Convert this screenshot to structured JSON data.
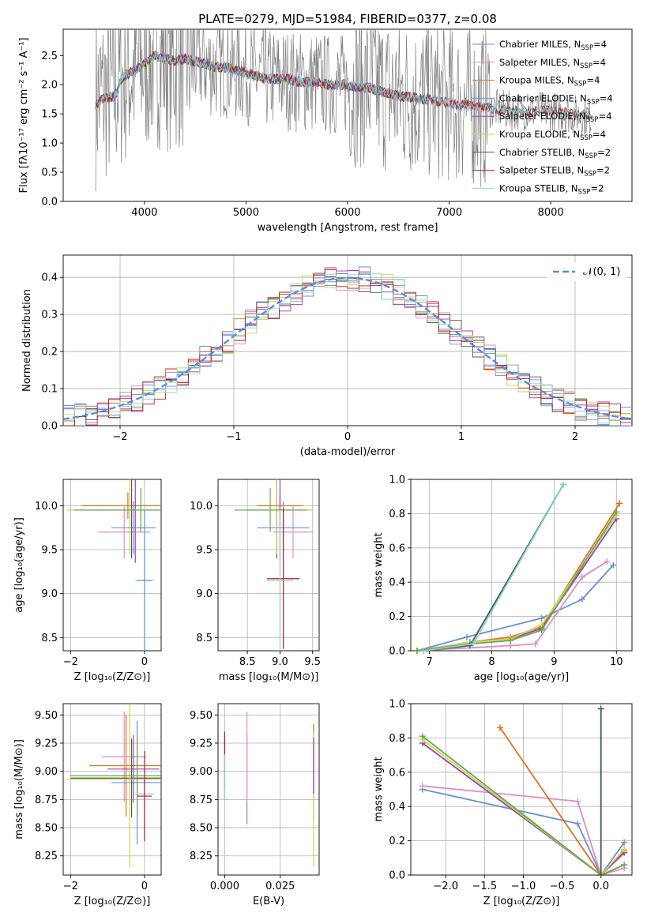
{
  "figure": {
    "title": "PLATE=0279, MJD=51984, FIBERID=0377, z=0.08",
    "colors": {
      "chabrier_miles": "#6a8fd4",
      "salpeter_miles": "#e38bc4",
      "kroupa_miles": "#e0701c",
      "chabrier_elodie": "#5a9bd5",
      "salpeter_elodie": "#9b3fb5",
      "kroupa_elodie": "#c8d84a",
      "chabrier_stelib": "#555555",
      "salpeter_stelib": "#c11a1a",
      "kroupa_stelib": "#7fd4d4",
      "data": "#808080"
    }
  },
  "chart_data": [
    {
      "id": "spectrum",
      "type": "line",
      "title": "PLATE=0279, MJD=51984, FIBERID=0377, z=0.08",
      "xlabel": "wavelength [Angstrom, rest frame]",
      "ylabel": "Flux [fλ10⁻¹⁷ erg cm⁻² s⁻¹ A⁻¹]",
      "xlim": [
        3200,
        8800
      ],
      "ylim": [
        0,
        2.95
      ],
      "xticks": [
        4000,
        5000,
        6000,
        7000,
        8000
      ],
      "yticks": [
        0.0,
        0.5,
        1.0,
        1.5,
        2.0,
        2.5
      ],
      "legend_position": "right",
      "legend": [
        "Chabrier MILES, N_SSP=4",
        "Salpeter MILES, N_SSP=4",
        "Kroupa MILES, N_SSP=4",
        "Chabrier ELODIE, N_SSP=4",
        "Salpeter ELODIE, N_SSP=4",
        "Kroupa ELODIE, N_SSP=4",
        "Chabrier STELIB, N_SSP=2",
        "Salpeter STELIB, N_SSP=2",
        "Kroupa STELIB, N_SSP=2"
      ],
      "model_continuum": {
        "x": [
          3500,
          3600,
          3700,
          3800,
          3900,
          4000,
          4100,
          4200,
          4300,
          4400,
          4500,
          4600,
          4700,
          4800,
          4900,
          5000,
          5100,
          5200,
          5300,
          5400,
          5500,
          5600,
          5700,
          5800,
          5900,
          6000,
          6100,
          6200,
          6300,
          6400,
          6500,
          6600,
          6700,
          6800,
          6900,
          7000,
          7100,
          7200,
          7300,
          7400,
          7600,
          7800,
          8000,
          8200,
          8400
        ],
        "y": [
          1.75,
          1.85,
          1.9,
          2.15,
          2.25,
          2.35,
          2.5,
          2.45,
          2.4,
          2.45,
          2.4,
          2.35,
          2.3,
          2.3,
          2.25,
          2.2,
          2.15,
          2.1,
          2.1,
          2.1,
          2.05,
          2.05,
          2.05,
          2.0,
          2.0,
          2.0,
          1.95,
          1.95,
          1.9,
          1.85,
          1.8,
          1.8,
          1.75,
          1.75,
          1.7,
          1.7,
          1.65,
          1.65,
          1.6,
          1.6,
          1.55,
          1.55,
          1.55,
          1.5,
          1.45
        ]
      }
    },
    {
      "id": "residuals",
      "type": "line",
      "xlabel": "(data-model)/error",
      "ylabel": "Normed distribution",
      "xlim": [
        -2.5,
        2.5
      ],
      "ylim": [
        0,
        0.46
      ],
      "xticks": [
        -2,
        -1,
        0,
        1,
        2
      ],
      "yticks": [
        0.0,
        0.1,
        0.2,
        0.3,
        0.4
      ],
      "legend": [
        "𝒩(0, 1)"
      ],
      "legend_position": "top-right"
    },
    {
      "id": "age_vs_Z",
      "type": "scatter",
      "xlabel": "Z [log₁₀(Z/Z⊙)]",
      "ylabel": "age  [log₁₀(age/yr)]",
      "xlim": [
        -2.2,
        0.45
      ],
      "ylim": [
        8.35,
        10.3
      ],
      "xticks": [
        -2,
        0
      ],
      "yticks": [
        8.5,
        9.0,
        9.5,
        10.0
      ],
      "points": [
        {
          "x": -0.45,
          "y": 10.0,
          "xerr": 1.25,
          "yerr": 0.15,
          "color": "#e0701c"
        },
        {
          "x": -0.55,
          "y": 9.7,
          "xerr": 0.7,
          "yerr": 0.3,
          "color": "#e38bc4"
        },
        {
          "x": -0.3,
          "y": 9.75,
          "xerr": 0.6,
          "yerr": 0.3,
          "color": "#6a8fd4"
        },
        {
          "x": -0.35,
          "y": 9.95,
          "xerr": 1.6,
          "yerr": 0.55,
          "color": "#555555"
        },
        {
          "x": -0.25,
          "y": 9.95,
          "xerr": 1.5,
          "yerr": 0.6,
          "color": "#9b3fb5"
        },
        {
          "x": -0.4,
          "y": 9.95,
          "xerr": 1.7,
          "yerr": 0.5,
          "color": "#c8d84a"
        },
        {
          "x": -0.1,
          "y": 9.95,
          "xerr": 1.8,
          "yerr": 0.25,
          "color": "#5fa84f"
        },
        {
          "x": 0.0,
          "y": 9.15,
          "xerr": 0.25,
          "yerr": 0.8,
          "color": "#7fd4d4"
        },
        {
          "x": 0.0,
          "y": 9.15,
          "xerr": 0.2,
          "yerr": 0.8,
          "color": "#5a9bd5"
        }
      ]
    },
    {
      "id": "age_vs_mass",
      "type": "scatter",
      "xlabel": "mass [log₁₀(M/M⊙)]",
      "xlim": [
        8.05,
        9.6
      ],
      "ylim": [
        8.35,
        10.3
      ],
      "xticks": [
        8.5,
        9.0,
        9.5
      ],
      "yticks": [
        8.5,
        9.0,
        9.5,
        10.0
      ],
      "points": [
        {
          "x": 9.0,
          "y": 10.0,
          "xerr": 0.35,
          "yerr": 0.15,
          "color": "#e0701c"
        },
        {
          "x": 9.2,
          "y": 9.7,
          "xerr": 0.3,
          "yerr": 0.3,
          "color": "#e38bc4"
        },
        {
          "x": 9.05,
          "y": 9.75,
          "xerr": 0.4,
          "yerr": 0.3,
          "color": "#6a8fd4"
        },
        {
          "x": 8.95,
          "y": 9.95,
          "xerr": 0.5,
          "yerr": 0.55,
          "color": "#555555"
        },
        {
          "x": 9.0,
          "y": 9.95,
          "xerr": 0.5,
          "yerr": 0.6,
          "color": "#9b3fb5"
        },
        {
          "x": 8.95,
          "y": 9.95,
          "xerr": 0.55,
          "yerr": 0.5,
          "color": "#c8d84a"
        },
        {
          "x": 8.85,
          "y": 9.95,
          "xerr": 0.55,
          "yerr": 0.25,
          "color": "#5fa84f"
        },
        {
          "x": 9.05,
          "y": 9.17,
          "xerr": 0.25,
          "yerr": 0.8,
          "color": "#c11a1a"
        },
        {
          "x": 9.0,
          "y": 9.15,
          "xerr": 0.2,
          "yerr": 0.8,
          "color": "#7fd4d4"
        }
      ]
    },
    {
      "id": "mass_weight_vs_age",
      "type": "line",
      "xlabel": "age  [log₁₀(age/yr)]",
      "ylabel": "mass weight",
      "xlim": [
        6.7,
        10.25
      ],
      "ylim": [
        0,
        1.0
      ],
      "xticks": [
        7,
        8,
        9,
        10
      ],
      "yticks": [
        0.0,
        0.2,
        0.4,
        0.6,
        0.8,
        1.0
      ],
      "series": [
        {
          "color": "#6a8fd4",
          "x": [
            6.8,
            7.6,
            8.8,
            9.45,
            9.95
          ],
          "y": [
            0.0,
            0.08,
            0.19,
            0.3,
            0.5
          ]
        },
        {
          "color": "#e38bc4",
          "x": [
            6.8,
            8.3,
            8.7,
            9.45,
            9.85
          ],
          "y": [
            0.0,
            0.03,
            0.04,
            0.43,
            0.52
          ]
        },
        {
          "color": "#e0701c",
          "x": [
            6.8,
            7.65,
            8.3,
            8.8,
            10.05
          ],
          "y": [
            0.0,
            0.05,
            0.08,
            0.14,
            0.86
          ]
        },
        {
          "color": "#9b3fb5",
          "x": [
            6.8,
            7.65,
            8.3,
            8.8,
            10.0
          ],
          "y": [
            0.0,
            0.05,
            0.07,
            0.13,
            0.77
          ]
        },
        {
          "color": "#c8d84a",
          "x": [
            6.8,
            7.65,
            8.3,
            8.8,
            10.0
          ],
          "y": [
            0.0,
            0.05,
            0.07,
            0.15,
            0.79
          ]
        },
        {
          "color": "#5fa84f",
          "x": [
            6.8,
            7.65,
            8.3,
            8.8,
            10.0
          ],
          "y": [
            0.0,
            0.04,
            0.06,
            0.12,
            0.81
          ]
        },
        {
          "color": "#555555",
          "x": [
            6.9,
            7.65,
            9.15
          ],
          "y": [
            0.0,
            0.03,
            0.97
          ]
        },
        {
          "color": "#7fd4d4",
          "x": [
            6.9,
            7.7,
            9.15
          ],
          "y": [
            0.0,
            0.04,
            0.97
          ]
        }
      ]
    },
    {
      "id": "mass_vs_Z",
      "type": "scatter",
      "xlabel": "Z [log₁₀(Z/Z⊙)]",
      "ylabel": "mass [log₁₀(M/M⊙)]",
      "xlim": [
        -2.2,
        0.45
      ],
      "ylim": [
        8.08,
        9.6
      ],
      "xticks": [
        -2,
        0
      ],
      "yticks": [
        8.25,
        8.5,
        8.75,
        9.0,
        9.25,
        9.5
      ],
      "points": [
        {
          "x": -0.5,
          "y": 9.05,
          "xerr": 1.0,
          "yerr": 0.45,
          "color": "#e0701c"
        },
        {
          "x": -0.55,
          "y": 9.13,
          "xerr": 0.6,
          "yerr": 0.4,
          "color": "#e38bc4"
        },
        {
          "x": -0.2,
          "y": 8.9,
          "xerr": 0.7,
          "yerr": 0.55,
          "color": "#6a8fd4"
        },
        {
          "x": -0.35,
          "y": 8.94,
          "xerr": 1.65,
          "yerr": 0.35,
          "color": "#555555"
        },
        {
          "x": -0.3,
          "y": 9.02,
          "xerr": 0.7,
          "yerr": 0.3,
          "color": "#9b3fb5"
        },
        {
          "x": -0.4,
          "y": 8.93,
          "xerr": 1.7,
          "yerr": 0.78,
          "color": "#c8d84a"
        },
        {
          "x": -0.2,
          "y": 8.96,
          "xerr": 1.8,
          "yerr": 0.35,
          "color": "#5fa84f"
        },
        {
          "x": 0.0,
          "y": 8.8,
          "xerr": 0.25,
          "yerr": 0.4,
          "color": "#7fd4d4"
        },
        {
          "x": 0.0,
          "y": 8.78,
          "xerr": 0.2,
          "yerr": 0.4,
          "color": "#c11a1a"
        }
      ]
    },
    {
      "id": "mass_vs_ebv",
      "type": "scatter",
      "xlabel": "E(B-V)",
      "xlim": [
        -0.003,
        0.0425
      ],
      "ylim": [
        8.08,
        9.6
      ],
      "xticks": [
        0.0,
        0.025
      ],
      "yticks": [
        8.25,
        8.5,
        8.75,
        9.0,
        9.25,
        9.5
      ],
      "points": [
        {
          "x": 0.0,
          "y": 9.05,
          "yerr": 0.3,
          "color": "#555555"
        },
        {
          "x": 0.0,
          "y": 9.1,
          "yerr": 0.25,
          "color": "#c11a1a"
        },
        {
          "x": 0.0,
          "y": 8.95,
          "yerr": 0.2,
          "color": "#7fd4d4"
        },
        {
          "x": 0.01,
          "y": 8.93,
          "yerr": 0.4,
          "color": "#6a8fd4"
        },
        {
          "x": 0.01,
          "y": 9.13,
          "yerr": 0.4,
          "color": "#e38bc4"
        },
        {
          "x": 0.04,
          "y": 9.0,
          "yerr": 0.42,
          "color": "#e0701c"
        },
        {
          "x": 0.04,
          "y": 8.75,
          "yerr": 0.6,
          "color": "#c8d84a"
        },
        {
          "x": 0.04,
          "y": 9.05,
          "yerr": 0.25,
          "color": "#9b3fb5"
        }
      ]
    },
    {
      "id": "mass_weight_vs_Z",
      "type": "line",
      "xlabel": "Z [log₁₀(Z/Z⊙)]",
      "ylabel": "mass weight",
      "xlim": [
        -2.45,
        0.4
      ],
      "ylim": [
        0,
        1.0
      ],
      "xticks": [
        -2.0,
        -1.5,
        -1.0,
        -0.5,
        0.0
      ],
      "yticks": [
        0.0,
        0.2,
        0.4,
        0.6,
        0.8,
        1.0
      ],
      "series": [
        {
          "color": "#6a8fd4",
          "x": [
            -2.3,
            -0.3,
            0.0,
            0.3
          ],
          "y": [
            0.5,
            0.3,
            0.0,
            0.19
          ]
        },
        {
          "color": "#e38bc4",
          "x": [
            -2.3,
            -0.3,
            0.0,
            0.3
          ],
          "y": [
            0.52,
            0.43,
            0.0,
            0.04
          ]
        },
        {
          "color": "#e0701c",
          "x": [
            -1.3,
            0.0,
            0.3
          ],
          "y": [
            0.86,
            0.0,
            0.14
          ]
        },
        {
          "color": "#9b3fb5",
          "x": [
            -2.3,
            0.0,
            0.3
          ],
          "y": [
            0.77,
            0.0,
            0.13
          ]
        },
        {
          "color": "#c8d84a",
          "x": [
            -2.3,
            0.0,
            0.3
          ],
          "y": [
            0.79,
            0.0,
            0.15
          ]
        },
        {
          "color": "#5fa84f",
          "x": [
            -2.3,
            0.0,
            0.3
          ],
          "y": [
            0.81,
            0.0,
            0.06
          ]
        },
        {
          "color": "#7fd4d4",
          "x": [
            0.0,
            0.0
          ],
          "y": [
            0.97,
            0.0
          ]
        },
        {
          "color": "#555555",
          "x": [
            0.0,
            0.0
          ],
          "y": [
            0.97,
            0.0
          ]
        }
      ]
    }
  ]
}
